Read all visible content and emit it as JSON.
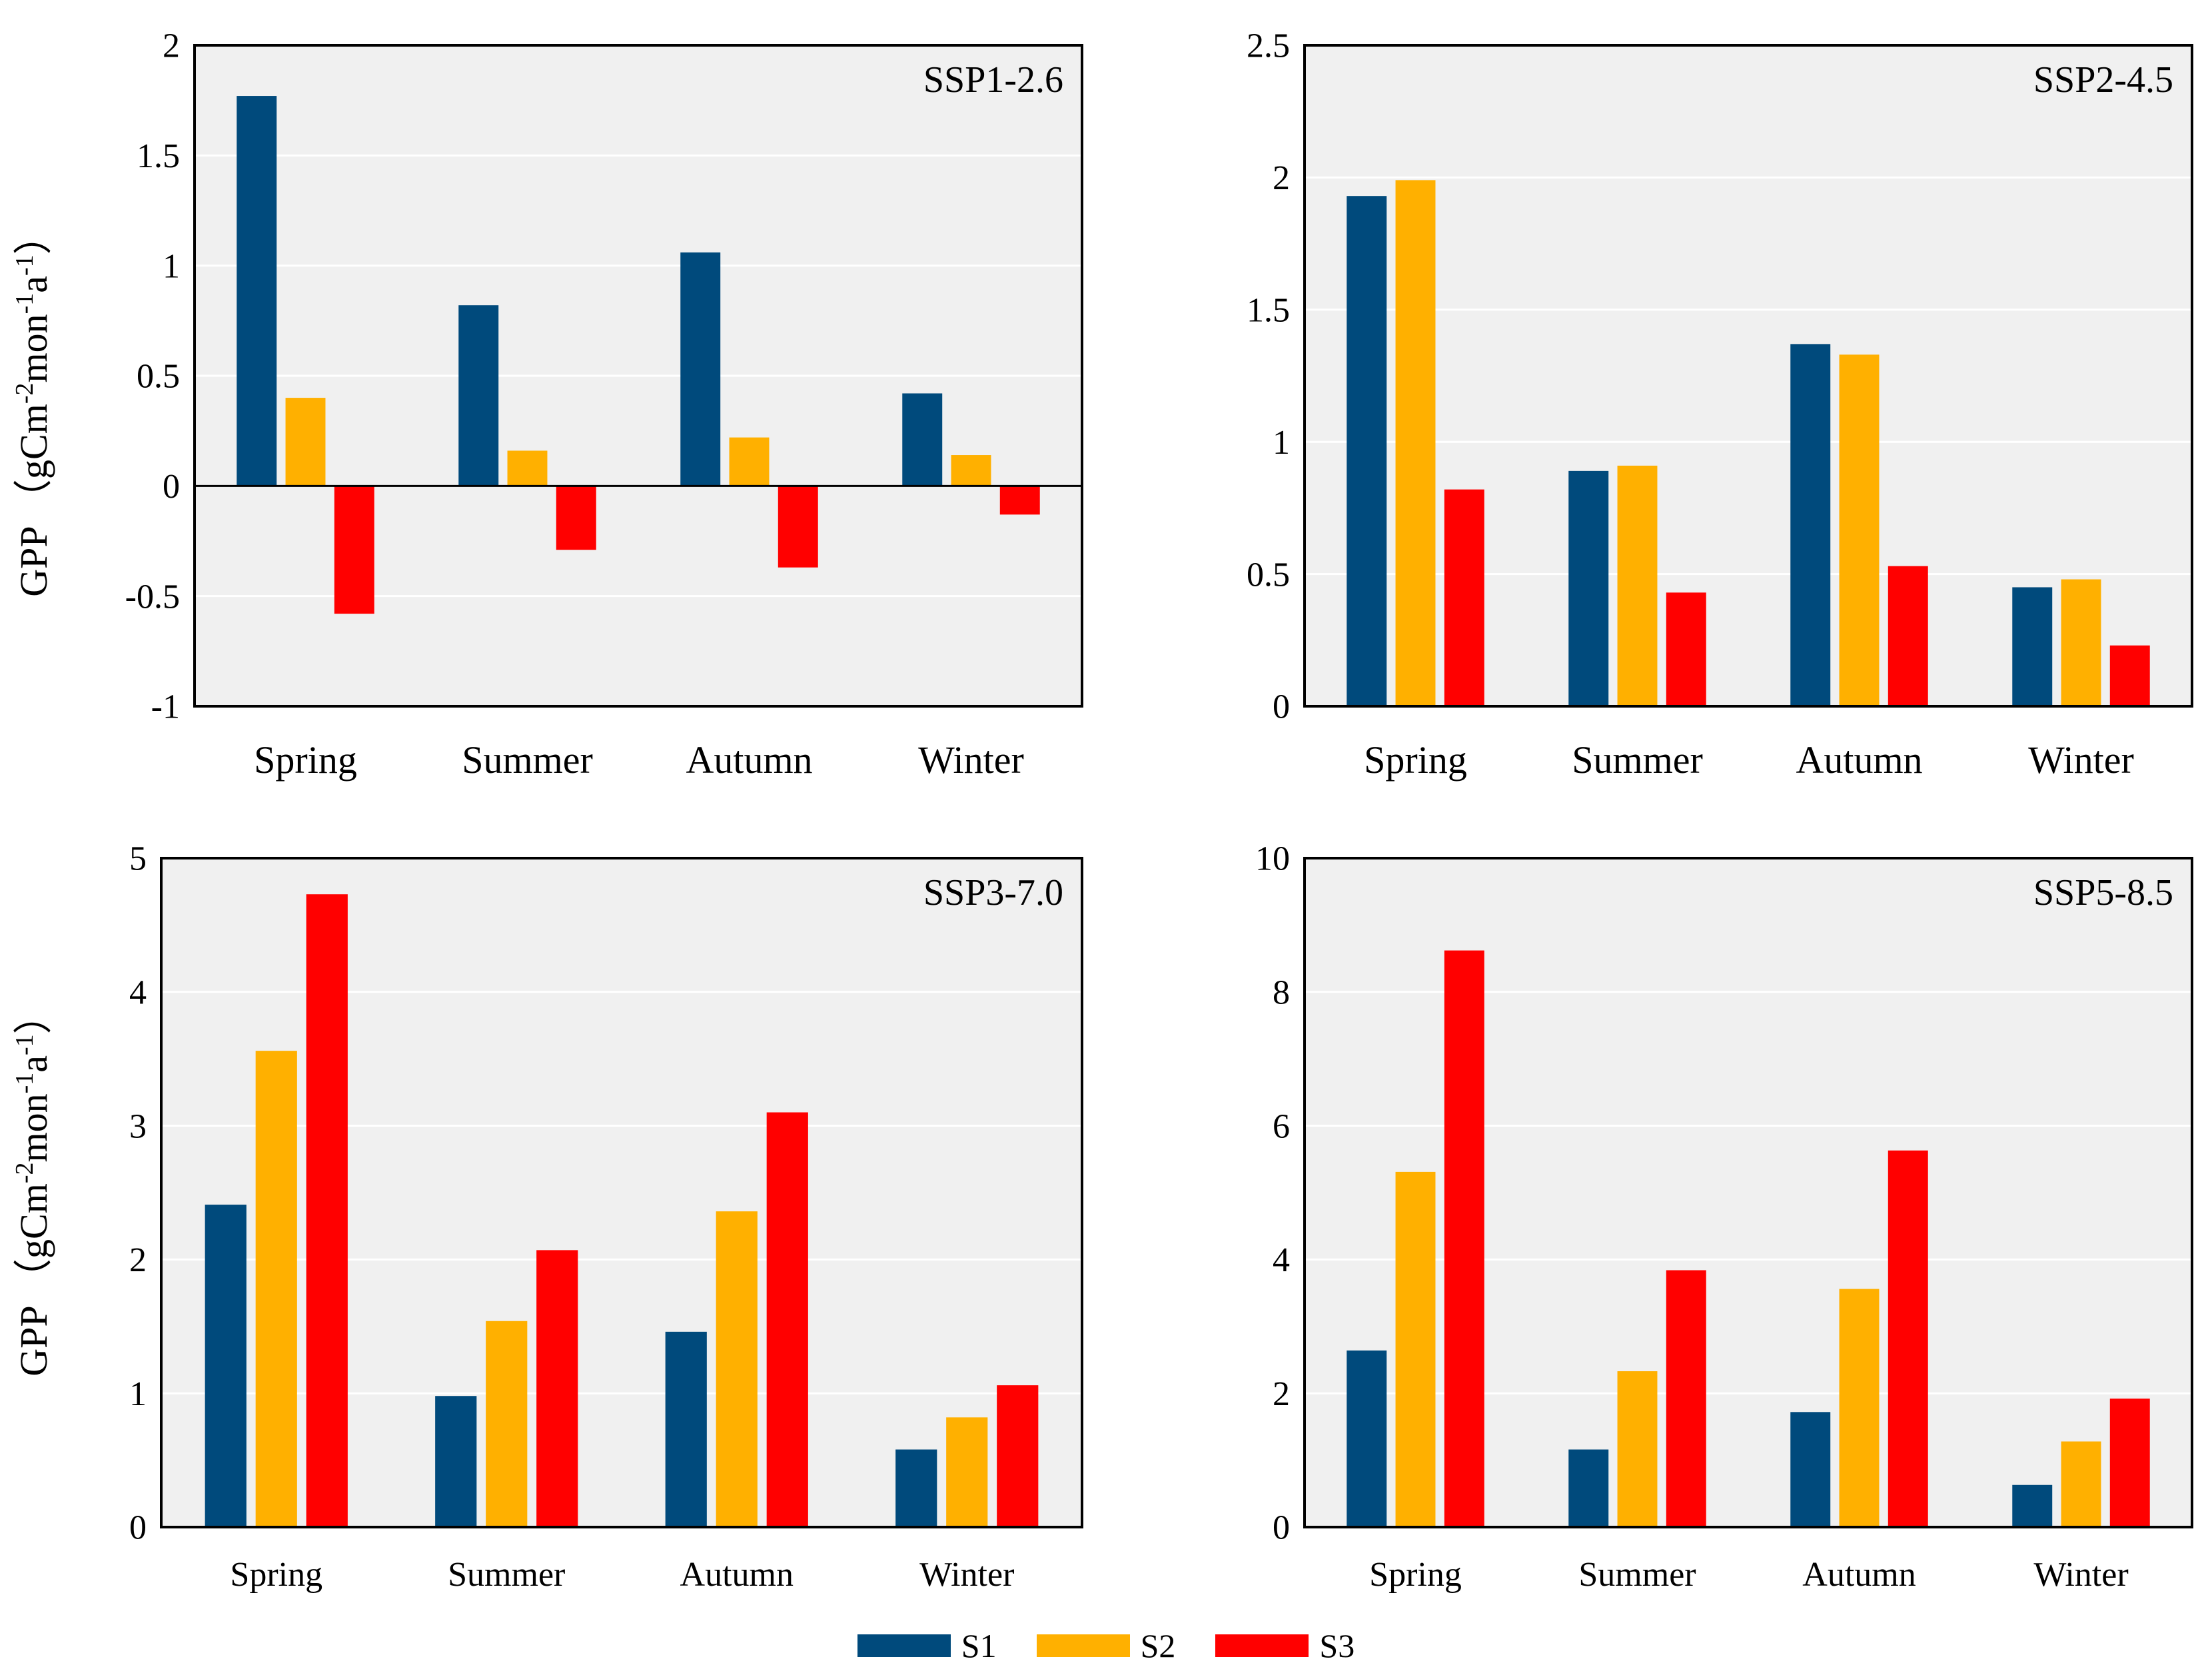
{
  "colors": {
    "S1": "#004a7c",
    "S2": "#ffb000",
    "S3": "#ff0000",
    "plot_bg": "#f0f0f0"
  },
  "y_axis_label": {
    "gpp": "GPP",
    "unit": "（gCm-2mon-1a-1）"
  },
  "legend": [
    {
      "key": "S1",
      "label": "S1"
    },
    {
      "key": "S2",
      "label": "S2"
    },
    {
      "key": "S3",
      "label": "S3"
    }
  ],
  "chart_data": [
    {
      "type": "bar",
      "title": "SSP1-2.6",
      "categories": [
        "Spring",
        "Summer",
        "Autumn",
        "Winter"
      ],
      "ylim": [
        -1,
        2
      ],
      "yticks": [
        -1,
        -0.5,
        0,
        0.5,
        1,
        1.5,
        2
      ],
      "ytick_labels": [
        "-1",
        "-0.5",
        "0",
        "0.5",
        "1",
        "1.5",
        "2"
      ],
      "xlabel": "",
      "ylabel": "GPP （gCm-2mon-1a-1）",
      "series": [
        {
          "name": "S1",
          "values": [
            1.77,
            0.82,
            1.06,
            0.42
          ]
        },
        {
          "name": "S2",
          "values": [
            0.4,
            0.16,
            0.22,
            0.14
          ]
        },
        {
          "name": "S3",
          "values": [
            -0.58,
            -0.29,
            -0.37,
            -0.13
          ]
        }
      ]
    },
    {
      "type": "bar",
      "title": "SSP2-4.5",
      "categories": [
        "Spring",
        "Summer",
        "Autumn",
        "Winter"
      ],
      "ylim": [
        0,
        2.5
      ],
      "yticks": [
        0,
        0.5,
        1,
        1.5,
        2,
        2.5
      ],
      "ytick_labels": [
        "0",
        "0.5",
        "1",
        "1.5",
        "2",
        "2.5"
      ],
      "xlabel": "",
      "ylabel": "",
      "series": [
        {
          "name": "S1",
          "values": [
            1.93,
            0.89,
            1.37,
            0.45
          ]
        },
        {
          "name": "S2",
          "values": [
            1.99,
            0.91,
            1.33,
            0.48
          ]
        },
        {
          "name": "S3",
          "values": [
            0.82,
            0.43,
            0.53,
            0.23
          ]
        }
      ]
    },
    {
      "type": "bar",
      "title": "SSP3-7.0",
      "categories": [
        "Spring",
        "Summer",
        "Autumn",
        "Winter"
      ],
      "ylim": [
        0,
        5
      ],
      "yticks": [
        0,
        1,
        2,
        3,
        4,
        5
      ],
      "ytick_labels": [
        "0",
        "1",
        "2",
        "3",
        "4",
        "5"
      ],
      "xlabel": "",
      "ylabel": "GPP （gCm-2mon-1a-1）",
      "series": [
        {
          "name": "S1",
          "values": [
            2.41,
            0.98,
            1.46,
            0.58
          ]
        },
        {
          "name": "S2",
          "values": [
            3.56,
            1.54,
            2.36,
            0.82
          ]
        },
        {
          "name": "S3",
          "values": [
            4.73,
            2.07,
            3.1,
            1.06
          ]
        }
      ]
    },
    {
      "type": "bar",
      "title": "SSP5-8.5",
      "categories": [
        "Spring",
        "Summer",
        "Autumn",
        "Winter"
      ],
      "ylim": [
        0,
        10
      ],
      "yticks": [
        0,
        2,
        4,
        6,
        8,
        10
      ],
      "ytick_labels": [
        "0",
        "2",
        "4",
        "6",
        "8",
        "10"
      ],
      "xlabel": "",
      "ylabel": "",
      "series": [
        {
          "name": "S1",
          "values": [
            2.64,
            1.16,
            1.72,
            0.63
          ]
        },
        {
          "name": "S2",
          "values": [
            5.31,
            2.33,
            3.56,
            1.28
          ]
        },
        {
          "name": "S3",
          "values": [
            8.62,
            3.84,
            5.63,
            1.92
          ]
        }
      ]
    }
  ]
}
